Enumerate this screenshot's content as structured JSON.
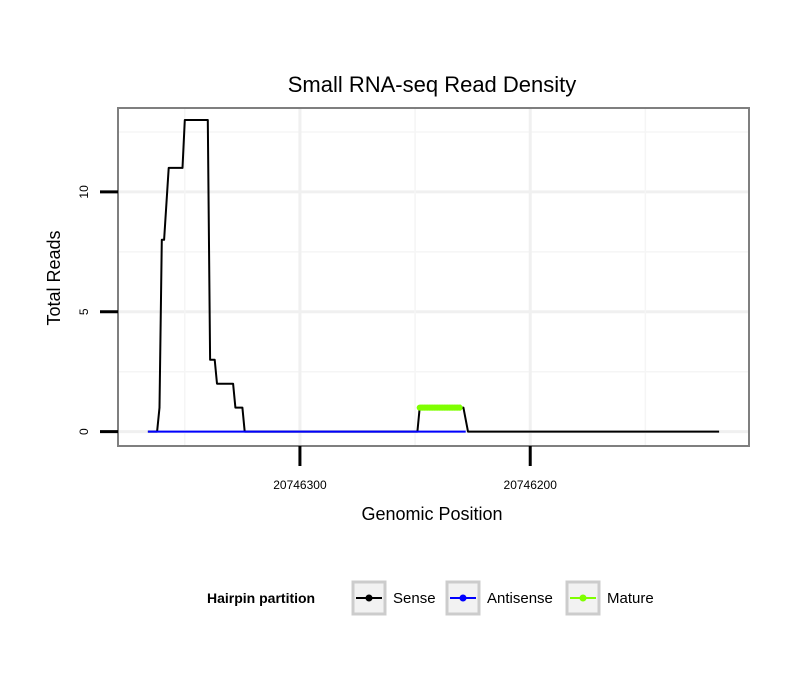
{
  "chart_data": {
    "type": "line",
    "title": "Small RNA-seq Read Density",
    "xlabel": "Genomic Position",
    "ylabel": "Total Reads",
    "xlim": [
      20746379,
      20746105
    ],
    "ylim": [
      -0.6,
      13.5
    ],
    "x_reversed": true,
    "x_ticks": [
      20746300,
      20746200
    ],
    "x_tick_labels": [
      "20746300",
      "20746200"
    ],
    "y_ticks": [
      0,
      5,
      10
    ],
    "y_tick_labels": [
      "0",
      "5",
      "10"
    ],
    "grid": true,
    "legend": {
      "title": "Hairpin partition",
      "position": "bottom",
      "entries": [
        {
          "label": "Sense",
          "color": "#000000"
        },
        {
          "label": "Antisense",
          "color": "#0000ff"
        },
        {
          "label": "Mature",
          "color": "#7fff00"
        }
      ]
    },
    "series": [
      {
        "name": "Sense",
        "color": "#000000",
        "x": [
          20746366,
          20746362,
          20746361,
          20746360,
          20746359,
          20746357,
          20746356,
          20746351,
          20746350,
          20746346,
          20746345,
          20746340,
          20746339,
          20746337,
          20746336,
          20746329,
          20746328,
          20746325,
          20746324,
          20746280,
          20746278,
          20746249,
          20746248,
          20746229,
          20746227,
          20746118
        ],
        "y": [
          0,
          0,
          1,
          8,
          8,
          11,
          11,
          11,
          13,
          13,
          13,
          13,
          3,
          3,
          2,
          2,
          1,
          1,
          0,
          0,
          0,
          0,
          1,
          1,
          0,
          0
        ]
      },
      {
        "name": "Antisense",
        "color": "#0000ff",
        "x": [
          20746366,
          20746325,
          20746249,
          20746228
        ],
        "y": [
          0,
          0,
          0,
          0
        ]
      },
      {
        "name": "Mature",
        "color": "#7fff00",
        "x": [
          20746248,
          20746230
        ],
        "y": [
          1,
          1
        ]
      }
    ]
  }
}
